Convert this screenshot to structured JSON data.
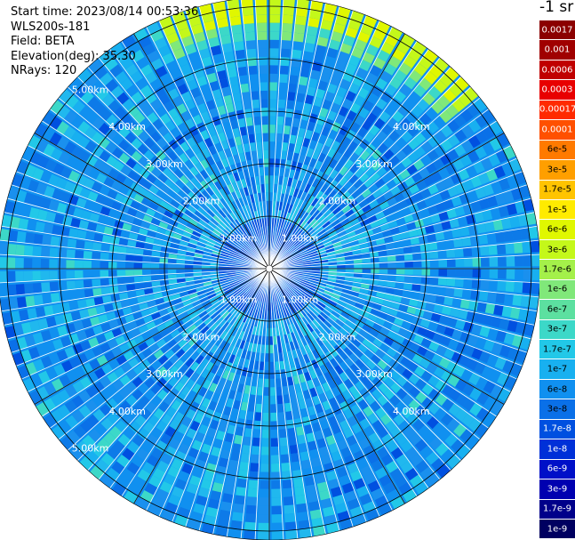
{
  "info": {
    "start_time": "Start time: 2023/08/14 00:53:36",
    "instrument": "WLS200s-181",
    "field": "Field: BETA",
    "elevation": "Elevation(deg): 35.30",
    "nrays": "NRays: 120"
  },
  "colorbar": {
    "unit": "-1 sr",
    "items": [
      {
        "label": "0.0017",
        "color": "#8b0000",
        "text_color": "#ffffff"
      },
      {
        "label": "0.001",
        "color": "#a00000",
        "text_color": "#ffffff"
      },
      {
        "label": "0.0006",
        "color": "#c00000",
        "text_color": "#ffffff"
      },
      {
        "label": "0.0003",
        "color": "#e80000",
        "text_color": "#ffffff"
      },
      {
        "label": "0.00017",
        "color": "#ff2a00",
        "text_color": "#ffffff"
      },
      {
        "label": "0.0001",
        "color": "#ff5000",
        "text_color": "#ffffff"
      },
      {
        "label": "6e-5",
        "color": "#ff7a00",
        "text_color": "#000000"
      },
      {
        "label": "3e-5",
        "color": "#ff9f00",
        "text_color": "#000000"
      },
      {
        "label": "1.7e-5",
        "color": "#ffc400",
        "text_color": "#000000"
      },
      {
        "label": "1e-5",
        "color": "#ffeb00",
        "text_color": "#000000"
      },
      {
        "label": "6e-6",
        "color": "#e0f700",
        "text_color": "#000000"
      },
      {
        "label": "3e-6",
        "color": "#c4f81a",
        "text_color": "#000000"
      },
      {
        "label": "1.7e-6",
        "color": "#a4f04a",
        "text_color": "#000000"
      },
      {
        "label": "1e-6",
        "color": "#80e87a",
        "text_color": "#000000"
      },
      {
        "label": "6e-7",
        "color": "#5ce0a0",
        "text_color": "#000000"
      },
      {
        "label": "3e-7",
        "color": "#3cd8c8",
        "text_color": "#000000"
      },
      {
        "label": "1.7e-7",
        "color": "#22c8e8",
        "text_color": "#000000"
      },
      {
        "label": "1e-7",
        "color": "#18b0f0",
        "text_color": "#000000"
      },
      {
        "label": "6e-8",
        "color": "#1090f0",
        "text_color": "#000000"
      },
      {
        "label": "3e-8",
        "color": "#0a70e8",
        "text_color": "#000000"
      },
      {
        "label": "1.7e-8",
        "color": "#0050e0",
        "text_color": "#ffffff"
      },
      {
        "label": "1e-8",
        "color": "#0030d8",
        "text_color": "#ffffff"
      },
      {
        "label": "6e-9",
        "color": "#0010c8",
        "text_color": "#ffffff"
      },
      {
        "label": "3e-9",
        "color": "#0000b0",
        "text_color": "#ffffff"
      },
      {
        "label": "1.7e-9",
        "color": "#00008a",
        "text_color": "#ffffff"
      },
      {
        "label": "1e-9",
        "color": "#000060",
        "text_color": "#ffffff"
      }
    ]
  },
  "range_labels": [
    "1.00km",
    "2.00km",
    "3.00km",
    "4.00km",
    "5.00km"
  ]
}
